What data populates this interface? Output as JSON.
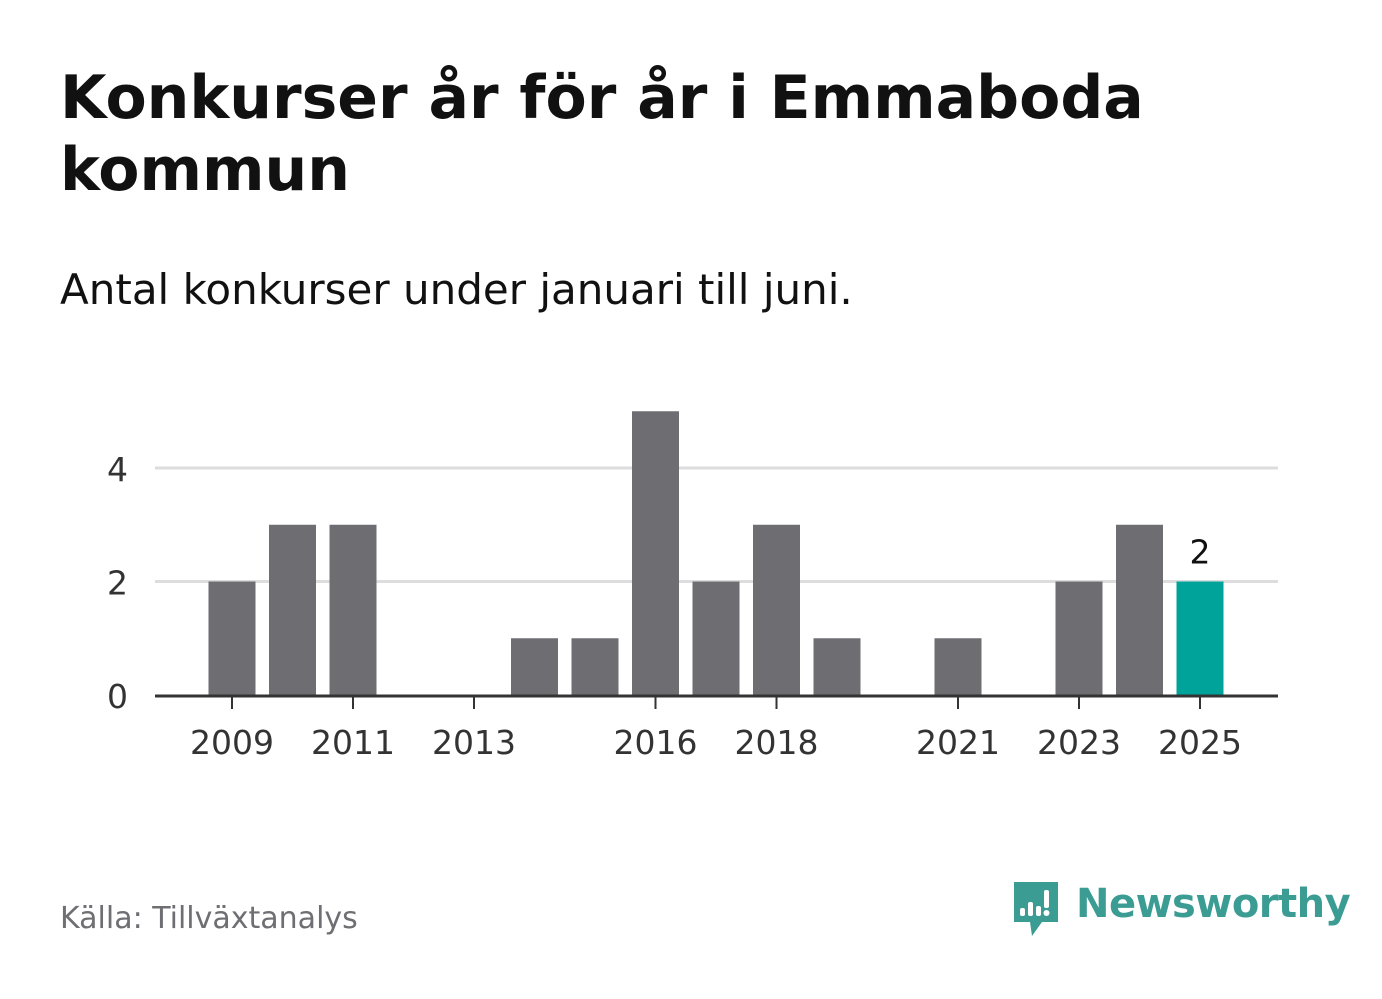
{
  "title": "Konkurser år för år i Emmaboda kommun",
  "subtitle": "Antal konkurser under januari till juni.",
  "source": "Källa: Tillväxtanalys",
  "brand": {
    "name": "Newsworthy",
    "icon": "newsworthy-logo-icon",
    "color": "#3b9c94"
  },
  "colors": {
    "bar": "#6e6d72",
    "highlight": "#00a39a",
    "grid": "#dddddd",
    "axis": "#333333",
    "text": "#333333"
  },
  "chart_data": {
    "type": "bar",
    "categories": [
      "2009",
      "2010",
      "2011",
      "2012",
      "2013",
      "2014",
      "2015",
      "2016",
      "2017",
      "2018",
      "2019",
      "2020",
      "2021",
      "2022",
      "2023",
      "2024",
      "2025"
    ],
    "values": [
      2,
      3,
      3,
      0,
      0,
      1,
      1,
      5,
      2,
      3,
      1,
      0,
      1,
      0,
      2,
      3,
      2
    ],
    "x_tick_labels": [
      "2009",
      "2011",
      "2013",
      "2016",
      "2018",
      "2021",
      "2023",
      "2025"
    ],
    "y_ticks": [
      0,
      2,
      4
    ],
    "ylim": [
      0,
      5
    ],
    "highlight_category": "2025",
    "data_labels": [
      {
        "category": "2025",
        "text": "2"
      }
    ],
    "grid": true,
    "xlabel": "",
    "ylabel": ""
  }
}
